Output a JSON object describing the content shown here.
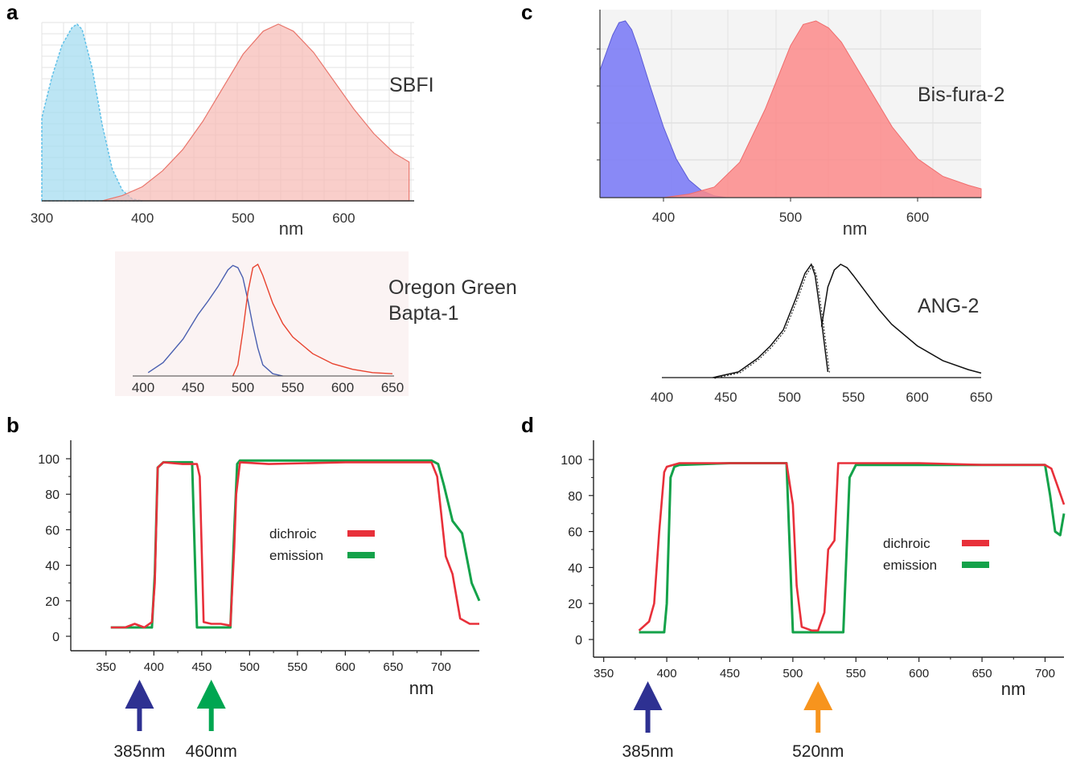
{
  "panels": {
    "a": {
      "letter": "a"
    },
    "b": {
      "letter": "b"
    },
    "c": {
      "letter": "c"
    },
    "d": {
      "letter": "d"
    }
  },
  "colors": {
    "sbfi_exc": "#a6dcf0",
    "sbfi_exc_line": "#5fc0e8",
    "sbfi_em": "#f6b9b3",
    "sbfi_em_line": "#e9766c",
    "bis_exc": "#7f7ff5",
    "bis_em": "#fb8a8a",
    "og_exc": "#4a5fb0",
    "og_em": "#e8432f",
    "dichroic": "#e8303a",
    "emission": "#14a24a",
    "arrow_385": "#2e3192",
    "arrow_460": "#00a651",
    "arrow_520": "#f7941d"
  },
  "chart_data": [
    {
      "id": "a-top",
      "type": "area",
      "label": "SBFI",
      "xlabel": "nm",
      "xticks": [
        300,
        400,
        500,
        600
      ],
      "xlim": [
        300,
        670
      ],
      "ylim": [
        0,
        1
      ],
      "grid": true,
      "series": [
        {
          "x": [
            300,
            310,
            320,
            330,
            335,
            340,
            350,
            360,
            370,
            380,
            390,
            400
          ],
          "values": [
            0.47,
            0.7,
            0.88,
            0.98,
            1.0,
            0.97,
            0.75,
            0.43,
            0.18,
            0.06,
            0.01,
            0.0
          ]
        },
        {
          "x": [
            360,
            380,
            400,
            420,
            440,
            460,
            480,
            500,
            520,
            535,
            550,
            570,
            590,
            610,
            630,
            650,
            665
          ],
          "values": [
            0.0,
            0.03,
            0.08,
            0.17,
            0.29,
            0.45,
            0.64,
            0.83,
            0.96,
            1.0,
            0.96,
            0.84,
            0.68,
            0.52,
            0.38,
            0.27,
            0.22
          ]
        }
      ]
    },
    {
      "id": "a-bottom",
      "type": "line",
      "label": "Oregon Green Bapta-1",
      "xticks": [
        400,
        450,
        500,
        550,
        600,
        650
      ],
      "xlim": [
        400,
        650
      ],
      "ylim": [
        0,
        1
      ],
      "series": [
        {
          "x": [
            405,
            420,
            440,
            455,
            465,
            475,
            485,
            490,
            495,
            500,
            505,
            510,
            515,
            520,
            530,
            540
          ],
          "values": [
            0.03,
            0.12,
            0.33,
            0.55,
            0.67,
            0.8,
            0.95,
            0.99,
            0.97,
            0.88,
            0.68,
            0.45,
            0.25,
            0.1,
            0.02,
            0.0
          ]
        },
        {
          "x": [
            490,
            495,
            500,
            505,
            510,
            515,
            520,
            530,
            540,
            550,
            570,
            590,
            610,
            630,
            650
          ],
          "values": [
            0.0,
            0.1,
            0.4,
            0.75,
            0.97,
            1.0,
            0.9,
            0.65,
            0.47,
            0.35,
            0.2,
            0.11,
            0.06,
            0.03,
            0.02
          ]
        }
      ]
    },
    {
      "id": "c-top",
      "type": "area",
      "label": "Bis-fura-2",
      "xlabel": "nm",
      "xticks": [
        400,
        500,
        600
      ],
      "xlim": [
        350,
        650
      ],
      "ylim": [
        0,
        1
      ],
      "grid": true,
      "series": [
        {
          "x": [
            350,
            360,
            365,
            370,
            375,
            380,
            390,
            400,
            410,
            420,
            430,
            440,
            450
          ],
          "values": [
            0.72,
            0.92,
            0.99,
            1.0,
            0.95,
            0.85,
            0.62,
            0.4,
            0.22,
            0.1,
            0.04,
            0.01,
            0.0
          ]
        },
        {
          "x": [
            400,
            420,
            440,
            460,
            480,
            500,
            510,
            520,
            530,
            540,
            560,
            580,
            600,
            620,
            640,
            650
          ],
          "values": [
            0.0,
            0.02,
            0.06,
            0.2,
            0.5,
            0.86,
            0.98,
            1.0,
            0.96,
            0.88,
            0.64,
            0.4,
            0.22,
            0.12,
            0.07,
            0.05
          ]
        }
      ]
    },
    {
      "id": "c-bottom",
      "type": "line",
      "label": "ANG-2",
      "xticks": [
        400,
        450,
        500,
        550,
        600,
        650
      ],
      "xlim": [
        400,
        650
      ],
      "ylim": [
        0,
        1
      ],
      "series": [
        {
          "x": [
            440,
            460,
            475,
            485,
            495,
            505,
            512,
            517,
            520,
            525,
            530
          ],
          "values": [
            0.0,
            0.05,
            0.17,
            0.28,
            0.42,
            0.7,
            0.92,
            1.0,
            0.9,
            0.5,
            0.05
          ]
        },
        {
          "x": [
            525,
            530,
            535,
            540,
            545,
            550,
            560,
            570,
            580,
            600,
            620,
            640,
            650
          ],
          "values": [
            0.45,
            0.8,
            0.95,
            1.0,
            0.97,
            0.9,
            0.75,
            0.6,
            0.47,
            0.28,
            0.15,
            0.07,
            0.04
          ]
        }
      ]
    },
    {
      "id": "b",
      "type": "line",
      "xlabel": "nm",
      "xticks": [
        350,
        400,
        450,
        500,
        550,
        600,
        650,
        700
      ],
      "xlim": [
        330,
        740
      ],
      "yticks": [
        0,
        20,
        40,
        60,
        80,
        100
      ],
      "ylim": [
        -8,
        112
      ],
      "legend": {
        "items": [
          "dichroic",
          "emission"
        ],
        "position": "center-right"
      },
      "series": [
        {
          "name": "dichroic",
          "x": [
            355,
            370,
            380,
            390,
            398,
            401,
            404,
            410,
            430,
            445,
            448,
            452,
            460,
            470,
            480,
            484,
            486,
            490,
            520,
            600,
            690,
            696,
            700,
            705,
            712,
            720,
            730,
            740
          ],
          "values": [
            5,
            5,
            7,
            5,
            8,
            30,
            95,
            98,
            97,
            97,
            90,
            8,
            7,
            7,
            6,
            50,
            80,
            98,
            97,
            98,
            98,
            90,
            70,
            45,
            35,
            10,
            7,
            7
          ]
        },
        {
          "name": "emission",
          "x": [
            355,
            398,
            401,
            404,
            410,
            440,
            442,
            445,
            480,
            484,
            487,
            490,
            520,
            600,
            690,
            697,
            703,
            712,
            722,
            732,
            740
          ],
          "values": [
            5,
            5,
            35,
            95,
            98,
            98,
            60,
            5,
            5,
            60,
            97,
            99,
            99,
            99,
            99,
            97,
            85,
            65,
            58,
            30,
            20
          ]
        }
      ],
      "arrows": [
        {
          "x": 385,
          "label": "385nm",
          "color": "#2e3192"
        },
        {
          "x": 460,
          "label": "460nm",
          "color": "#00a651"
        }
      ]
    },
    {
      "id": "d",
      "type": "line",
      "xlabel": "nm",
      "xticks": [
        350,
        400,
        450,
        500,
        550,
        600,
        650,
        700
      ],
      "xlim": [
        340,
        715
      ],
      "yticks": [
        0,
        20,
        40,
        60,
        80,
        100
      ],
      "ylim": [
        -8,
        112
      ],
      "legend": {
        "items": [
          "dichroic",
          "emission"
        ],
        "position": "center-right"
      },
      "series": [
        {
          "name": "dichroic",
          "x": [
            378,
            386,
            390,
            394,
            398,
            400,
            410,
            450,
            495,
            500,
            503,
            507,
            515,
            520,
            525,
            528,
            533,
            536,
            545,
            600,
            650,
            700,
            705,
            710,
            715
          ],
          "values": [
            5,
            10,
            20,
            60,
            93,
            96,
            98,
            98,
            98,
            75,
            30,
            7,
            5,
            5,
            15,
            50,
            55,
            98,
            98,
            98,
            97,
            97,
            95,
            85,
            75
          ]
        },
        {
          "name": "emission",
          "x": [
            378,
            398,
            400,
            403,
            406,
            410,
            450,
            495,
            497,
            500,
            540,
            545,
            550,
            600,
            650,
            700,
            704,
            708,
            712,
            715
          ],
          "values": [
            4,
            4,
            20,
            90,
            96,
            97,
            98,
            98,
            60,
            4,
            4,
            90,
            97,
            97,
            97,
            97,
            80,
            60,
            58,
            70
          ]
        }
      ],
      "arrows": [
        {
          "x": 385,
          "label": "385nm",
          "color": "#2e3192"
        },
        {
          "x": 520,
          "label": "520nm",
          "color": "#f7941d"
        }
      ]
    }
  ]
}
